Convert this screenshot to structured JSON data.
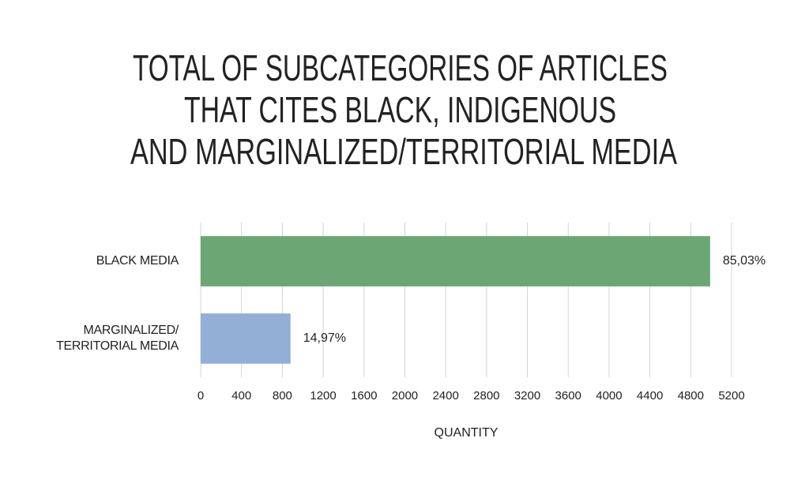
{
  "chart_data": {
    "type": "hbar",
    "title": [
      "TOTAL OF SUBCATEGORIES OF ARTICLES",
      "THAT CITES BLACK, INDIGENOUS",
      "AND MARGINALIZED/TERRITORIAL MEDIA"
    ],
    "categories": [
      "BLACK MEDIA",
      "MARGINALIZED/ TERRITORIAL MEDIA"
    ],
    "values": [
      4990,
      880
    ],
    "share_labels": [
      "85,03%",
      "14,97%"
    ],
    "colors": [
      "#6ba674",
      "#93afd6"
    ],
    "xlabel": "QUANTITY",
    "xlim": [
      0,
      5200
    ],
    "xticks": [
      0,
      400,
      800,
      1200,
      1600,
      2000,
      2400,
      2800,
      3200,
      3600,
      4000,
      4400,
      4800,
      5200
    ],
    "grid": true
  }
}
